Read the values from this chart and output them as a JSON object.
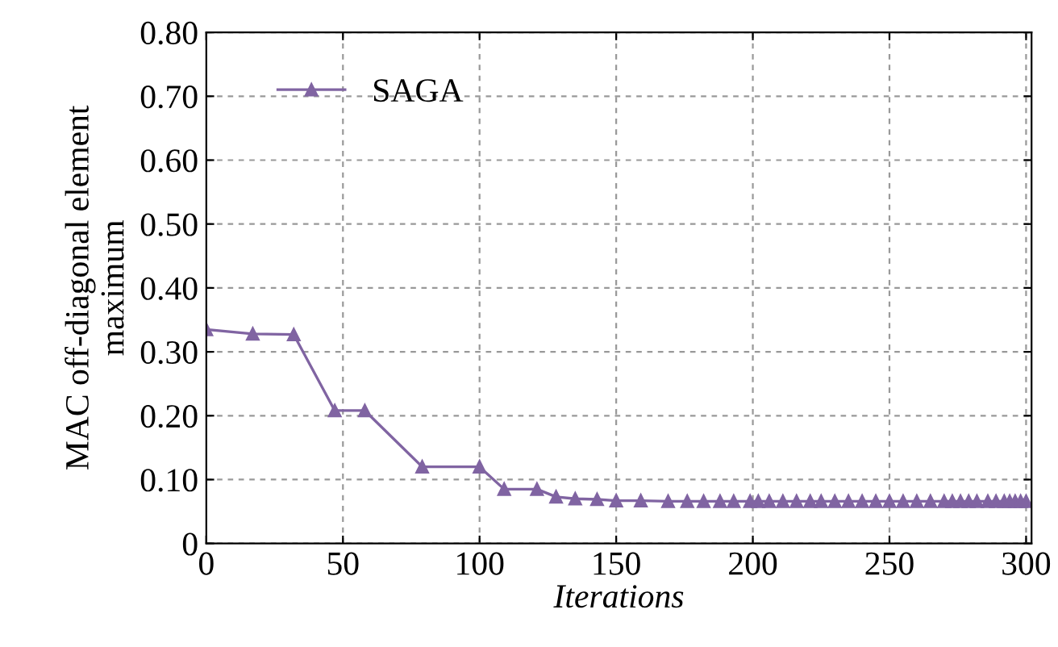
{
  "chart_data": {
    "type": "line",
    "xlabel": "Iterations",
    "ylabel": "MAC off-diagonal element\nmaximum",
    "xlim": [
      0,
      302
    ],
    "ylim": [
      0,
      0.8
    ],
    "xticks": [
      0,
      50,
      100,
      150,
      200,
      250,
      300
    ],
    "yticks": [
      {
        "value": 0,
        "label": "0"
      },
      {
        "value": 0.1,
        "label": "0.10"
      },
      {
        "value": 0.2,
        "label": "0.20"
      },
      {
        "value": 0.3,
        "label": "0.30"
      },
      {
        "value": 0.4,
        "label": "0.40"
      },
      {
        "value": 0.5,
        "label": "0.50"
      },
      {
        "value": 0.6,
        "label": "0.60"
      },
      {
        "value": 0.7,
        "label": "0.70"
      },
      {
        "value": 0.8,
        "label": "0.80"
      }
    ],
    "grid": true,
    "legend": "top left",
    "marker": "triangle",
    "line_style": "solid",
    "series": [
      {
        "name": "SAGA",
        "color": "#8064a2",
        "x": [
          0,
          17,
          32,
          47,
          58,
          79,
          100,
          109,
          121,
          128,
          135,
          143,
          150,
          159,
          169,
          176,
          182,
          188,
          193,
          199,
          202,
          206,
          211,
          216,
          221,
          225,
          230,
          235,
          240,
          245,
          250,
          255,
          260,
          265,
          270,
          273,
          276,
          279,
          282,
          286,
          289,
          292,
          294,
          296,
          298,
          300
        ],
        "values": [
          0.335,
          0.328,
          0.327,
          0.208,
          0.208,
          0.12,
          0.12,
          0.085,
          0.085,
          0.073,
          0.07,
          0.069,
          0.067,
          0.067,
          0.066,
          0.066,
          0.066,
          0.066,
          0.066,
          0.066,
          0.066,
          0.066,
          0.066,
          0.066,
          0.066,
          0.066,
          0.066,
          0.066,
          0.066,
          0.066,
          0.066,
          0.066,
          0.066,
          0.066,
          0.066,
          0.066,
          0.066,
          0.066,
          0.066,
          0.066,
          0.066,
          0.066,
          0.066,
          0.066,
          0.066,
          0.066
        ]
      }
    ]
  }
}
